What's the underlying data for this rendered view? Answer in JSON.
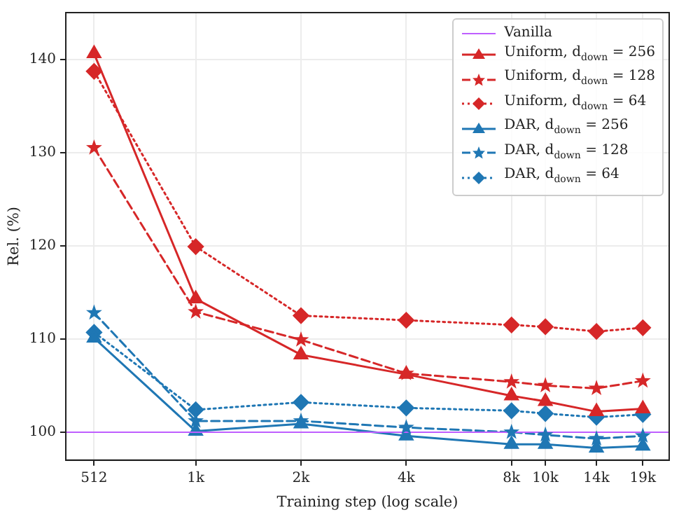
{
  "chart_data": {
    "type": "line",
    "xlabel": "Training step (log scale)",
    "ylabel": "Rel. (%)",
    "x": [
      512,
      1000,
      2000,
      4000,
      8000,
      10000,
      14000,
      19000
    ],
    "log": "x",
    "xlim": [
      425,
      22600
    ],
    "ylim": [
      97,
      145
    ],
    "xticks": [
      {
        "value": 512,
        "label": "512"
      },
      {
        "value": 1000,
        "label": "1k"
      },
      {
        "value": 2000,
        "label": "2k"
      },
      {
        "value": 4000,
        "label": "4k"
      },
      {
        "value": 8000,
        "label": "8k"
      },
      {
        "value": 10000,
        "label": "10k"
      },
      {
        "value": 14000,
        "label": "14k"
      },
      {
        "value": 19000,
        "label": "19k"
      }
    ],
    "yticks": [
      100,
      110,
      120,
      130,
      140
    ],
    "grid": true,
    "legend": "top right",
    "ref_lines": [
      {
        "axis": "y",
        "value": 100,
        "label": "Vanilla",
        "color": "#bf5fff"
      }
    ],
    "series": [
      {
        "name": "Uniform, d$_{down}$ = 256",
        "color": "#d62728",
        "marker": "triangle",
        "line_style": "solid",
        "values": [
          140.6,
          114.3,
          108.3,
          106.2,
          103.9,
          103.3,
          102.2,
          102.5
        ]
      },
      {
        "name": "Uniform, d$_{down}$ = 128",
        "color": "#d62728",
        "marker": "star",
        "line_style": "dashed",
        "values": [
          130.5,
          112.9,
          109.9,
          106.3,
          105.4,
          105.0,
          104.7,
          105.5
        ]
      },
      {
        "name": "Uniform, d$_{down}$ = 64",
        "color": "#d62728",
        "marker": "diamond",
        "line_style": "dotted",
        "values": [
          138.7,
          119.9,
          112.5,
          112.0,
          111.5,
          111.3,
          110.8,
          111.2
        ]
      },
      {
        "name": "DAR, d$_{down}$ = 256",
        "color": "#1f77b4",
        "marker": "triangle",
        "line_style": "solid",
        "values": [
          110.1,
          100.1,
          100.9,
          99.6,
          98.7,
          98.7,
          98.3,
          98.5
        ]
      },
      {
        "name": "DAR, d$_{down}$ = 128",
        "color": "#1f77b4",
        "marker": "star",
        "line_style": "dashed",
        "values": [
          112.8,
          101.2,
          101.2,
          100.5,
          100.0,
          99.7,
          99.3,
          99.6
        ]
      },
      {
        "name": "DAR, d$_{down}$ = 64",
        "color": "#1f77b4",
        "marker": "diamond",
        "line_style": "dotted",
        "values": [
          110.7,
          102.4,
          103.2,
          102.6,
          102.3,
          102.0,
          101.6,
          101.9
        ]
      }
    ]
  }
}
